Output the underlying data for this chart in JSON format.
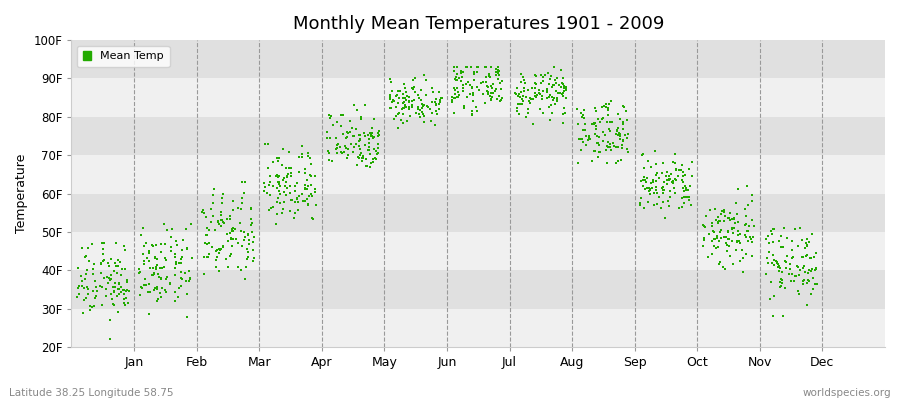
{
  "title": "Monthly Mean Temperatures 1901 - 2009",
  "ylabel": "Temperature",
  "xlabel_bottom_left": "Latitude 38.25 Longitude 58.75",
  "xlabel_bottom_right": "worldspecies.org",
  "ylim": [
    20,
    100
  ],
  "yticks": [
    20,
    30,
    40,
    50,
    60,
    70,
    80,
    90,
    100
  ],
  "ytick_labels": [
    "20F",
    "30F",
    "40F",
    "50F",
    "60F",
    "70F",
    "80F",
    "90F",
    "100F"
  ],
  "months": [
    "Jan",
    "Feb",
    "Mar",
    "Apr",
    "May",
    "Jun",
    "Jul",
    "Aug",
    "Sep",
    "Oct",
    "Nov",
    "Dec"
  ],
  "dot_color": "#22aa00",
  "bg_color": "#ffffff",
  "plot_bg_color": "#ffffff",
  "band_color_light": "#f0f0f0",
  "band_color_dark": "#e0e0e0",
  "legend_label": "Mean Temp",
  "n_years": 109,
  "month_means": [
    37,
    40,
    49,
    62,
    74,
    84,
    88,
    86,
    76,
    62,
    50,
    42
  ],
  "month_stds": [
    5,
    5,
    6,
    5,
    4,
    3,
    3,
    3,
    4,
    4,
    5,
    5
  ],
  "month_mins": [
    22,
    22,
    35,
    52,
    64,
    77,
    80,
    78,
    68,
    52,
    38,
    28
  ],
  "month_maxs": [
    47,
    52,
    63,
    73,
    83,
    91,
    93,
    93,
    84,
    74,
    62,
    51
  ],
  "dashed_line_color": "#999999",
  "spine_color": "#cccccc",
  "tick_color": "#999999",
  "bottom_text_color": "#888888"
}
